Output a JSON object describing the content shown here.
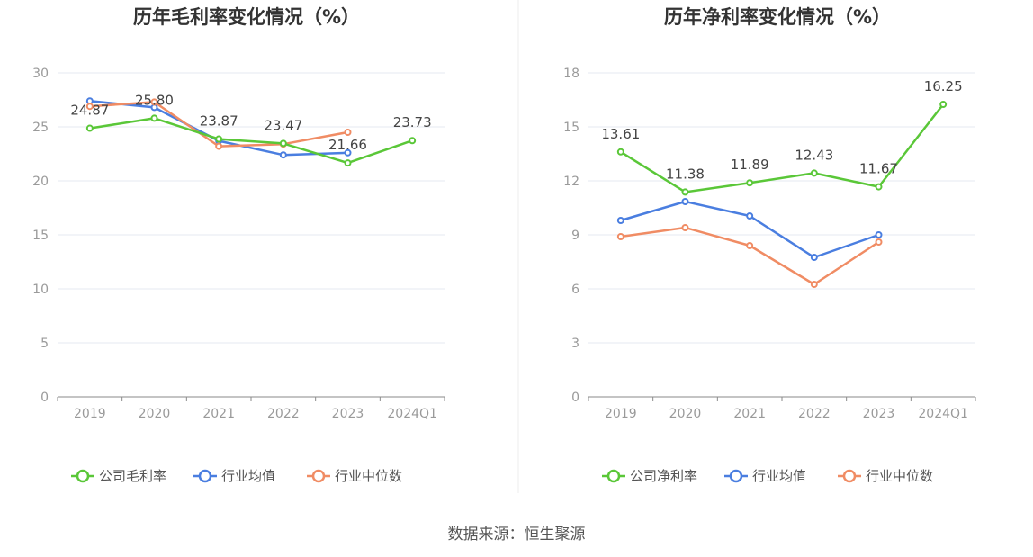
{
  "source": "数据来源：恒生聚源",
  "colors": {
    "company": "#5ac738",
    "avg": "#4a7ee0",
    "median": "#f08c64",
    "grid": "#e6e9f2",
    "axis": "#8a8a8a",
    "tick": "#9a9a9a",
    "label": "#444444",
    "title": "#333333",
    "divider": "#eeeeee"
  },
  "chart_data": [
    {
      "type": "line",
      "title": "历年毛利率变化情况（%）",
      "categories": [
        "2019",
        "2020",
        "2021",
        "2022",
        "2023",
        "2024Q1"
      ],
      "ylim": [
        0,
        30
      ],
      "yticks": [
        0,
        5,
        10,
        15,
        20,
        25,
        30
      ],
      "series": [
        {
          "key": "company",
          "name": "公司毛利率",
          "values": [
            24.87,
            25.8,
            23.87,
            23.47,
            21.66,
            23.73
          ],
          "labels": [
            "24.87",
            "25.80",
            "23.87",
            "23.47",
            "21.66",
            "23.73"
          ]
        },
        {
          "key": "avg",
          "name": "行业均值",
          "values": [
            27.4,
            26.8,
            23.7,
            22.4,
            22.6,
            null
          ]
        },
        {
          "key": "median",
          "name": "行业中位数",
          "values": [
            26.9,
            27.3,
            23.2,
            23.4,
            24.5,
            null
          ]
        }
      ]
    },
    {
      "type": "line",
      "title": "历年净利率变化情况（%）",
      "categories": [
        "2019",
        "2020",
        "2021",
        "2022",
        "2023",
        "2024Q1"
      ],
      "ylim": [
        0,
        18
      ],
      "yticks": [
        0,
        3,
        6,
        9,
        12,
        15,
        18
      ],
      "series": [
        {
          "key": "company",
          "name": "公司净利率",
          "values": [
            13.61,
            11.38,
            11.89,
            12.43,
            11.67,
            16.25
          ],
          "labels": [
            "13.61",
            "11.38",
            "11.89",
            "12.43",
            "11.67",
            "16.25"
          ]
        },
        {
          "key": "avg",
          "name": "行业均值",
          "values": [
            9.8,
            10.85,
            10.05,
            7.75,
            9.0,
            null
          ]
        },
        {
          "key": "median",
          "name": "行业中位数",
          "values": [
            8.9,
            9.4,
            8.4,
            6.25,
            8.6,
            null
          ]
        }
      ]
    }
  ]
}
